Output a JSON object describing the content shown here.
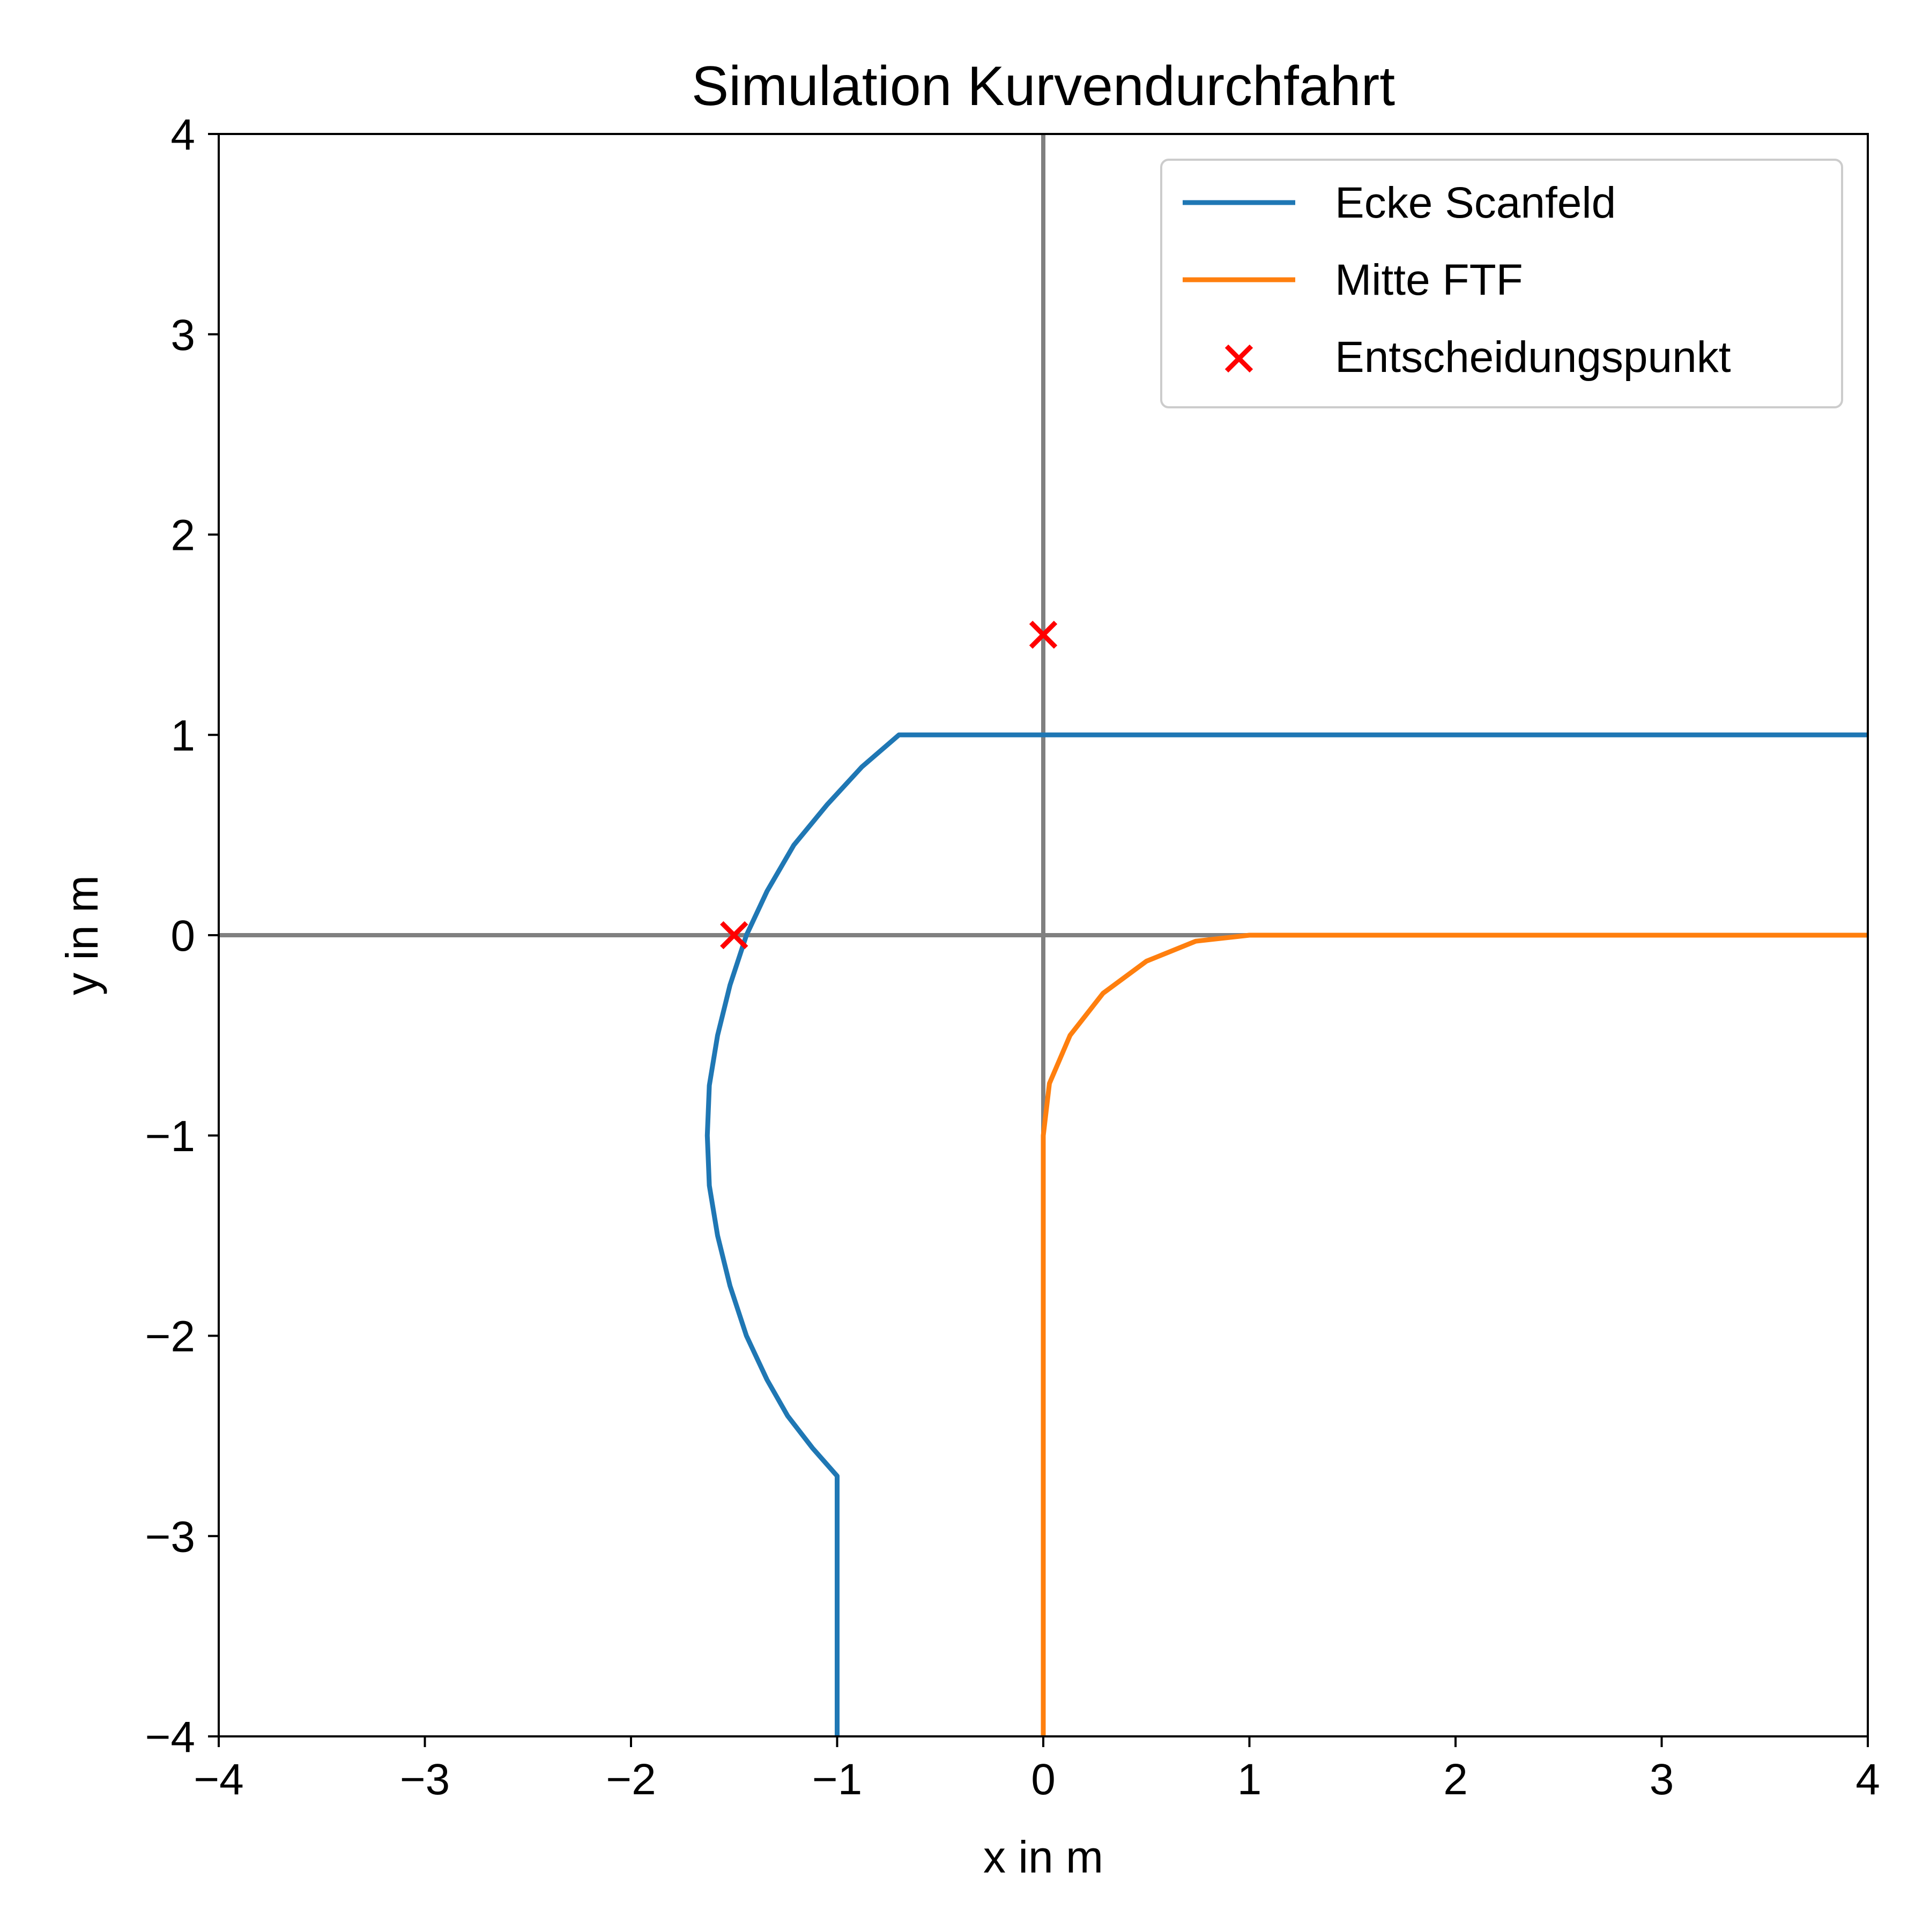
{
  "chart_data": {
    "type": "line",
    "title": "Simulation Kurvendurchfahrt",
    "xlabel": "x in m",
    "ylabel": "y in m",
    "xlim": [
      -4,
      4
    ],
    "ylim": [
      -4,
      4
    ],
    "xticks": [
      -4,
      -3,
      -2,
      -1,
      0,
      1,
      2,
      3,
      4
    ],
    "yticks": [
      -4,
      -3,
      -2,
      -1,
      0,
      1,
      2,
      3,
      4
    ],
    "xtick_labels": [
      "−4",
      "−3",
      "−2",
      "−1",
      "0",
      "1",
      "2",
      "3",
      "4"
    ],
    "ytick_labels": [
      "−4",
      "−3",
      "−2",
      "−1",
      "0",
      "1",
      "2",
      "3",
      "4"
    ],
    "grid": false,
    "reference_lines": {
      "x": 0,
      "y": 0,
      "color": "#808080"
    },
    "legend_position": "top-right",
    "series": [
      {
        "name": "Ecke Scanfeld",
        "kind": "line",
        "color": "#1f77b4",
        "points": [
          [
            -1.0,
            -4.0
          ],
          [
            -1.0,
            -2.7
          ],
          [
            -1.12,
            -2.56
          ],
          [
            -1.24,
            -2.4
          ],
          [
            -1.34,
            -2.22
          ],
          [
            -1.44,
            -2.0
          ],
          [
            -1.52,
            -1.75
          ],
          [
            -1.58,
            -1.5
          ],
          [
            -1.62,
            -1.25
          ],
          [
            -1.63,
            -1.0
          ],
          [
            -1.62,
            -0.75
          ],
          [
            -1.58,
            -0.5
          ],
          [
            -1.52,
            -0.25
          ],
          [
            -1.44,
            0.0
          ],
          [
            -1.34,
            0.22
          ],
          [
            -1.21,
            0.45
          ],
          [
            -1.05,
            0.65
          ],
          [
            -0.88,
            0.84
          ],
          [
            -0.7,
            1.0
          ],
          [
            4.0,
            1.0
          ]
        ]
      },
      {
        "name": "Mitte FTF",
        "kind": "line",
        "color": "#ff7f0e",
        "points": [
          [
            0.0,
            -4.0
          ],
          [
            0.0,
            -1.0
          ],
          [
            0.03,
            -0.74
          ],
          [
            0.13,
            -0.5
          ],
          [
            0.29,
            -0.29
          ],
          [
            0.5,
            -0.13
          ],
          [
            0.74,
            -0.03
          ],
          [
            1.0,
            0.0
          ],
          [
            4.0,
            0.0
          ]
        ]
      },
      {
        "name": "Entscheidungspunkt",
        "kind": "scatter",
        "marker": "x",
        "color": "#ff0000",
        "points": [
          [
            0.0,
            1.5
          ],
          [
            -1.5,
            0.0
          ]
        ]
      }
    ]
  }
}
